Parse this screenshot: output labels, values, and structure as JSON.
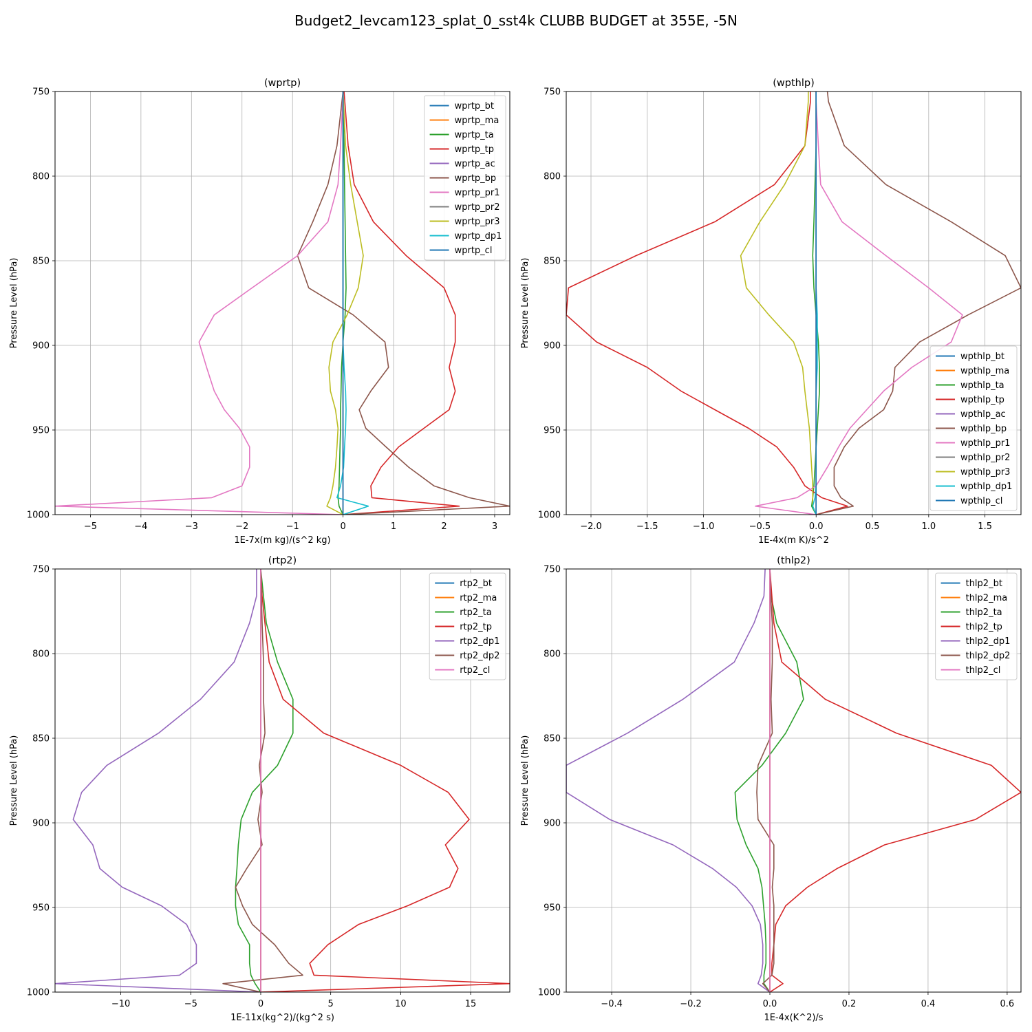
{
  "figure": {
    "title": "Budget2_levcam123_splat_0_sst4k CLUBB BUDGET at 355E, -5N"
  },
  "colors": [
    "#1f77b4",
    "#ff7f0e",
    "#2ca02c",
    "#d62728",
    "#9467bd",
    "#8c564b",
    "#e377c2",
    "#7f7f7f",
    "#bcbd22",
    "#17becf",
    "#1f77b4"
  ],
  "chart_data": [
    {
      "type": "line",
      "title": "(wprtp)",
      "xlabel": "1E-7x(m kg)/(s^2 kg)",
      "ylabel": "Pressure Level (hPa)",
      "xlim": [
        -5.7,
        3.3
      ],
      "ylim": [
        1000,
        750
      ],
      "xticks": [
        -5,
        -4,
        -3,
        -2,
        -1,
        0,
        1,
        2,
        3
      ],
      "xtick_labels": [
        "−5",
        "−4",
        "−3",
        "−2",
        "−1",
        "0",
        "1",
        "2",
        "3"
      ],
      "yticks": [
        750,
        800,
        850,
        900,
        950,
        1000
      ],
      "ytick_labels": [
        "750",
        "800",
        "850",
        "900",
        "950",
        "1000"
      ],
      "grid": true,
      "legend_loc": "upper-right",
      "y": [
        750,
        782,
        805,
        827,
        847,
        866,
        882,
        898,
        913,
        927,
        938,
        949,
        960,
        972,
        983,
        990,
        995,
        1000
      ],
      "series": [
        {
          "name": "wprtp_bt",
          "values": [
            0,
            0,
            0,
            0,
            0,
            0,
            0,
            0,
            0,
            0,
            0,
            0,
            0,
            0,
            0,
            0,
            0,
            0
          ]
        },
        {
          "name": "wprtp_ma",
          "values": [
            0,
            0,
            0,
            0,
            0,
            0,
            0,
            0,
            0,
            0,
            0,
            0,
            0,
            0,
            0,
            0,
            0,
            0
          ]
        },
        {
          "name": "wprtp_ta",
          "values": [
            0.0,
            0.02,
            0.03,
            0.04,
            0.05,
            0.06,
            0.04,
            0.0,
            -0.03,
            -0.04,
            -0.05,
            -0.05,
            -0.06,
            -0.07,
            -0.08,
            -0.1,
            -0.08,
            0.0
          ]
        },
        {
          "name": "wprtp_tp",
          "values": [
            0.02,
            0.1,
            0.22,
            0.6,
            1.25,
            2.0,
            2.22,
            2.22,
            2.1,
            2.22,
            2.1,
            1.6,
            1.1,
            0.75,
            0.55,
            0.57,
            2.3,
            0.0
          ]
        },
        {
          "name": "wprtp_ac",
          "values": [
            0,
            0,
            0,
            0,
            0,
            0,
            0,
            0,
            0,
            0,
            0,
            0,
            0,
            0,
            0,
            0,
            0,
            0
          ]
        },
        {
          "name": "wprtp_bp",
          "values": [
            0.0,
            -0.12,
            -0.3,
            -0.6,
            -0.9,
            -0.68,
            0.2,
            0.83,
            0.9,
            0.55,
            0.32,
            0.45,
            0.85,
            1.3,
            1.8,
            2.5,
            3.3,
            0.0
          ]
        },
        {
          "name": "wprtp_pr1",
          "values": [
            0.0,
            -0.05,
            -0.1,
            -0.3,
            -0.9,
            -1.8,
            -2.55,
            -2.85,
            -2.7,
            -2.55,
            -2.35,
            -2.05,
            -1.85,
            -1.85,
            -2.0,
            -2.6,
            -5.7,
            0.0
          ]
        },
        {
          "name": "wprtp_pr2",
          "values": [
            0,
            0,
            0,
            0,
            0,
            0,
            0,
            0,
            0,
            0,
            0,
            0,
            0,
            0,
            0,
            0,
            0,
            0
          ]
        },
        {
          "name": "wprtp_pr3",
          "values": [
            0.0,
            0.05,
            0.15,
            0.28,
            0.4,
            0.3,
            0.08,
            -0.2,
            -0.28,
            -0.25,
            -0.15,
            -0.1,
            -0.12,
            -0.15,
            -0.2,
            -0.25,
            -0.32,
            0.0
          ]
        },
        {
          "name": "wprtp_dp1",
          "values": [
            0.0,
            0.0,
            0.0,
            0.0,
            0.0,
            0.0,
            0.0,
            0.0,
            0.02,
            0.05,
            0.06,
            0.05,
            0.03,
            0.01,
            -0.05,
            -0.12,
            0.5,
            0.0
          ]
        },
        {
          "name": "wprtp_cl",
          "values": [
            0,
            0,
            0,
            0,
            0,
            0,
            0,
            0,
            0,
            0,
            0,
            0,
            0,
            0,
            0,
            0,
            0,
            0
          ]
        }
      ]
    },
    {
      "type": "line",
      "title": "(wpthlp)",
      "xlabel": "1E-4x(m K)/s^2",
      "ylabel": "Pressure Level (hPa)",
      "xlim": [
        -2.22,
        1.82
      ],
      "ylim": [
        1000,
        750
      ],
      "xticks": [
        -2.0,
        -1.5,
        -1.0,
        -0.5,
        0.0,
        0.5,
        1.0,
        1.5
      ],
      "xtick_labels": [
        "−2.0",
        "−1.5",
        "−1.0",
        "−0.5",
        "0.0",
        "0.5",
        "1.0",
        "1.5"
      ],
      "yticks": [
        750,
        800,
        850,
        900,
        950,
        1000
      ],
      "ytick_labels": [
        "750",
        "800",
        "850",
        "900",
        "950",
        "1000"
      ],
      "grid": true,
      "legend_loc": "lower-right",
      "y": [
        750,
        756,
        782,
        805,
        827,
        847,
        866,
        882,
        898,
        913,
        927,
        938,
        949,
        960,
        972,
        983,
        990,
        995,
        1000
      ],
      "series": [
        {
          "name": "wpthlp_bt",
          "values": [
            0,
            0,
            0,
            0,
            0,
            0,
            0,
            0,
            0,
            0,
            0,
            0,
            0,
            0,
            0,
            0,
            0,
            0,
            0
          ]
        },
        {
          "name": "wpthlp_ma",
          "values": [
            0,
            0,
            0,
            0,
            0,
            0,
            0,
            0,
            0,
            0,
            0,
            0,
            0,
            0,
            0,
            0,
            0,
            0,
            0
          ]
        },
        {
          "name": "wpthlp_ta",
          "values": [
            0.0,
            0.0,
            0.0,
            -0.01,
            -0.02,
            -0.03,
            -0.02,
            0.0,
            0.02,
            0.03,
            0.03,
            0.02,
            0.01,
            0.0,
            -0.01,
            -0.02,
            -0.03,
            -0.04,
            0.0
          ]
        },
        {
          "name": "wpthlp_tp",
          "values": [
            -0.05,
            -0.05,
            -0.1,
            -0.37,
            -0.9,
            -1.6,
            -2.2,
            -2.22,
            -1.95,
            -1.5,
            -1.2,
            -0.9,
            -0.6,
            -0.35,
            -0.2,
            -0.1,
            0.05,
            0.28,
            0.0
          ]
        },
        {
          "name": "wpthlp_ac",
          "values": [
            0,
            0,
            0,
            0,
            0,
            0,
            0,
            0,
            0,
            0,
            0,
            0,
            0,
            0,
            0,
            0,
            0,
            0,
            0
          ]
        },
        {
          "name": "wpthlp_bp",
          "values": [
            0.1,
            0.11,
            0.25,
            0.62,
            1.2,
            1.68,
            1.82,
            1.35,
            0.92,
            0.7,
            0.68,
            0.6,
            0.38,
            0.25,
            0.16,
            0.16,
            0.22,
            0.33,
            0.0
          ]
        },
        {
          "name": "wpthlp_pr1",
          "values": [
            0.0,
            0.0,
            0.02,
            0.04,
            0.23,
            0.62,
            1.0,
            1.3,
            1.2,
            0.85,
            0.6,
            0.45,
            0.3,
            0.2,
            0.1,
            0.0,
            -0.17,
            -0.54,
            0.0
          ]
        },
        {
          "name": "wpthlp_pr2",
          "values": [
            0,
            0,
            0,
            0,
            0,
            0,
            0,
            0,
            0,
            0,
            0,
            0,
            0,
            0,
            0,
            0,
            0,
            0,
            0
          ]
        },
        {
          "name": "wpthlp_pr3",
          "values": [
            -0.07,
            -0.07,
            -0.1,
            -0.28,
            -0.5,
            -0.67,
            -0.62,
            -0.42,
            -0.2,
            -0.12,
            -0.1,
            -0.08,
            -0.06,
            -0.05,
            -0.04,
            -0.03,
            -0.03,
            -0.03,
            0.0
          ]
        },
        {
          "name": "wpthlp_dp1",
          "values": [
            0.0,
            0.0,
            0.0,
            0.0,
            0.0,
            0.0,
            0.0,
            0.01,
            0.01,
            0.01,
            0.0,
            0.0,
            0.0,
            0.0,
            0.0,
            0.0,
            -0.01,
            -0.03,
            0.0
          ]
        },
        {
          "name": "wpthlp_cl",
          "values": [
            0,
            0,
            0,
            0,
            0,
            0,
            0,
            0,
            0,
            0,
            0,
            0,
            0,
            0,
            0,
            0,
            0,
            0,
            0
          ]
        }
      ]
    },
    {
      "type": "line",
      "title": "(rtp2)",
      "xlabel": "1E-11x(kg^2)/(kg^2 s)",
      "ylabel": "Pressure Level (hPa)",
      "xlim": [
        -14.7,
        17.8
      ],
      "ylim": [
        1000,
        750
      ],
      "xticks": [
        -10,
        -5,
        0,
        5,
        10,
        15
      ],
      "xtick_labels": [
        "−10",
        "−5",
        "0",
        "5",
        "10",
        "15"
      ],
      "yticks": [
        750,
        800,
        850,
        900,
        950,
        1000
      ],
      "ytick_labels": [
        "750",
        "800",
        "850",
        "900",
        "950",
        "1000"
      ],
      "grid": true,
      "legend_loc": "upper-right",
      "y": [
        750,
        766,
        782,
        805,
        827,
        847,
        866,
        882,
        898,
        913,
        927,
        938,
        949,
        960,
        972,
        983,
        990,
        995,
        1000
      ],
      "series": [
        {
          "name": "rtp2_bt",
          "values": [
            0,
            0,
            0,
            0,
            0,
            0,
            0,
            0,
            0,
            0,
            0,
            0,
            0,
            0,
            0,
            0,
            0,
            0,
            0
          ]
        },
        {
          "name": "rtp2_ma",
          "values": [
            0,
            0,
            0,
            0,
            0,
            0,
            0,
            0,
            0,
            0,
            0,
            0,
            0,
            0,
            0,
            0,
            0,
            0,
            0
          ]
        },
        {
          "name": "rtp2_ta",
          "values": [
            0.0,
            0.2,
            0.4,
            1.2,
            2.3,
            2.3,
            1.2,
            -0.6,
            -1.4,
            -1.6,
            -1.7,
            -1.8,
            -1.8,
            -1.6,
            -0.8,
            -0.8,
            -0.7,
            -0.4,
            0.0
          ]
        },
        {
          "name": "rtp2_tp",
          "values": [
            0.0,
            0.1,
            0.3,
            0.6,
            1.6,
            4.5,
            10.0,
            13.4,
            14.9,
            13.2,
            14.1,
            13.5,
            10.5,
            7.0,
            4.8,
            3.5,
            3.8,
            17.8,
            0.0
          ]
        },
        {
          "name": "rtp2_dp1",
          "values": [
            -0.3,
            -0.3,
            -0.8,
            -1.9,
            -4.3,
            -7.3,
            -11.0,
            -12.8,
            -13.4,
            -12.0,
            -11.5,
            -9.9,
            -7.1,
            -5.3,
            -4.6,
            -4.6,
            -5.8,
            -14.7,
            0.0
          ]
        },
        {
          "name": "rtp2_dp2",
          "values": [
            0.0,
            0.05,
            0.1,
            0.2,
            0.2,
            0.3,
            -0.1,
            0.1,
            -0.2,
            0.1,
            -1.0,
            -1.8,
            -1.3,
            -0.6,
            1.0,
            2.0,
            3.0,
            -2.7,
            0.0
          ]
        },
        {
          "name": "rtp2_cl",
          "values": [
            0,
            0,
            0,
            0,
            0,
            0,
            0,
            0,
            0,
            0,
            0,
            0,
            0,
            0,
            0,
            0,
            0,
            0,
            0
          ]
        }
      ]
    },
    {
      "type": "line",
      "title": "(thlp2)",
      "xlabel": "1E-4x(K^2)/s",
      "ylabel": "Pressure Level (hPa)",
      "xlim": [
        -0.515,
        0.635
      ],
      "ylim": [
        1000,
        750
      ],
      "xticks": [
        -0.4,
        -0.2,
        0.0,
        0.2,
        0.4,
        0.6
      ],
      "xtick_labels": [
        "−0.4",
        "−0.2",
        "0.0",
        "0.2",
        "0.4",
        "0.6"
      ],
      "yticks": [
        750,
        800,
        850,
        900,
        950,
        1000
      ],
      "ytick_labels": [
        "750",
        "800",
        "850",
        "900",
        "950",
        "1000"
      ],
      "grid": true,
      "legend_loc": "upper-right",
      "y": [
        750,
        766,
        782,
        805,
        827,
        847,
        866,
        882,
        898,
        913,
        927,
        938,
        949,
        960,
        972,
        983,
        990,
        995,
        1000
      ],
      "series": [
        {
          "name": "thlp2_bt",
          "values": [
            0,
            0,
            0,
            0,
            0,
            0,
            0,
            0,
            0,
            0,
            0,
            0,
            0,
            0,
            0,
            0,
            0,
            0,
            0
          ]
        },
        {
          "name": "thlp2_ma",
          "values": [
            0,
            0,
            0,
            0,
            0,
            0,
            0,
            0,
            0,
            0,
            0,
            0,
            0,
            0,
            0,
            0,
            0,
            0,
            0
          ]
        },
        {
          "name": "thlp2_ta",
          "values": [
            0.0,
            0.003,
            0.017,
            0.068,
            0.085,
            0.04,
            -0.02,
            -0.088,
            -0.083,
            -0.06,
            -0.03,
            -0.02,
            -0.016,
            -0.012,
            -0.01,
            -0.01,
            -0.015,
            -0.015,
            0.0
          ]
        },
        {
          "name": "thlp2_tp",
          "values": [
            0.0,
            0.005,
            0.01,
            0.03,
            0.14,
            0.32,
            0.56,
            0.635,
            0.52,
            0.29,
            0.17,
            0.095,
            0.04,
            0.015,
            0.01,
            0.005,
            0.005,
            0.033,
            0.0
          ]
        },
        {
          "name": "thlp2_dp1",
          "values": [
            -0.012,
            -0.015,
            -0.04,
            -0.09,
            -0.22,
            -0.36,
            -0.515,
            -0.515,
            -0.405,
            -0.245,
            -0.145,
            -0.085,
            -0.045,
            -0.024,
            -0.018,
            -0.018,
            -0.022,
            -0.03,
            0.0
          ]
        },
        {
          "name": "thlp2_dp2",
          "values": [
            0.0,
            0.002,
            0.006,
            0.006,
            0.003,
            0.006,
            -0.03,
            -0.033,
            -0.03,
            0.01,
            0.01,
            0.006,
            0.01,
            0.01,
            0.01,
            0.01,
            0.005,
            -0.018,
            0.0
          ]
        },
        {
          "name": "thlp2_cl",
          "values": [
            0,
            0,
            0,
            0,
            0,
            0,
            0,
            0,
            0,
            0,
            0,
            0,
            0,
            0,
            0,
            0,
            0,
            0,
            0
          ]
        }
      ]
    }
  ]
}
